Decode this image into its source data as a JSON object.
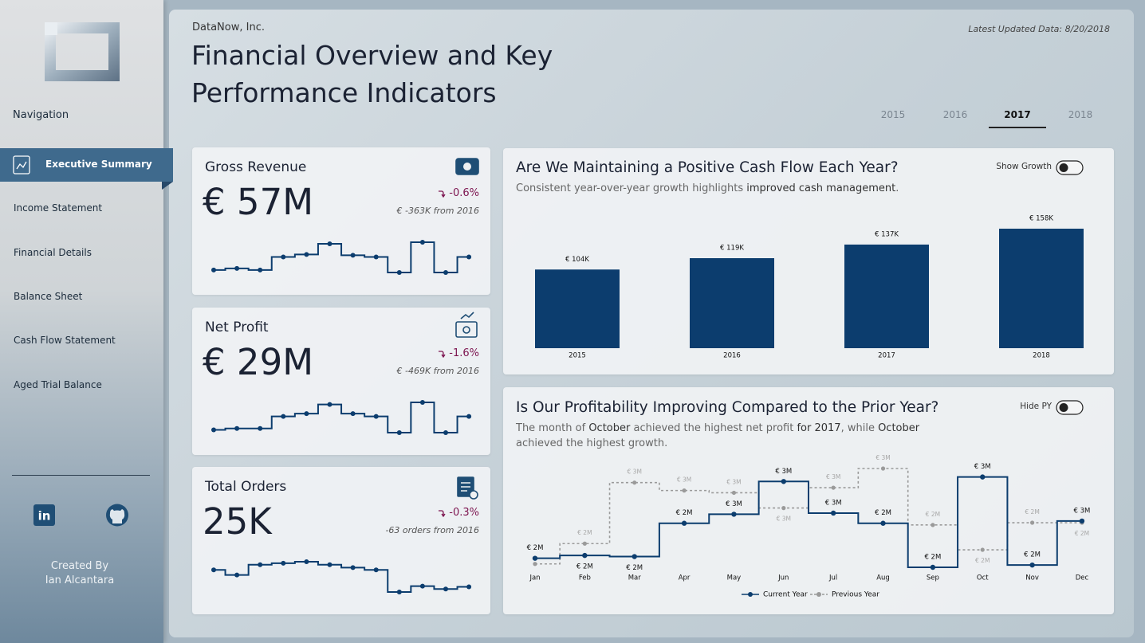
{
  "header": {
    "company": "DataNow, Inc.",
    "title": "Financial Overview and Key Performance Indicators",
    "updated": "Latest Updated Data: 8/20/2018",
    "years": [
      "2015",
      "2016",
      "2017",
      "2018"
    ],
    "selected_year": 2
  },
  "navigation": {
    "label": "Navigation",
    "items": [
      "Executive Summary",
      "Income Statement",
      "Financial Details",
      "Balance Sheet",
      "Cash Flow Statement",
      "Aged Trial Balance"
    ],
    "active": 0,
    "credit": [
      "Created By",
      "Ian Alcantara"
    ]
  },
  "kpis": [
    {
      "title": "Gross Revenue",
      "value": "€ 57M",
      "change": "-0.6%",
      "comparison": "€ -363K from 2016"
    },
    {
      "title": "Net Profit",
      "value": "€ 29M",
      "change": "-1.6%",
      "comparison": "€ -469K from 2016"
    },
    {
      "title": "Total Orders",
      "value": "25K",
      "change": "-0.3%",
      "comparison": "-63 orders from 2016"
    }
  ],
  "chart_data": [
    {
      "type": "bar",
      "title": "Are We Maintaining a Positive Cash Flow Each Year?",
      "subtitle": [
        {
          "text": "Consistent year-over-year growth highlights ",
          "bold": false
        },
        {
          "text": "improved cash management",
          "bold": true
        },
        {
          "text": ".",
          "bold": false
        }
      ],
      "toggle": "Show Growth",
      "categories": [
        "2015",
        "2016",
        "2017",
        "2018"
      ],
      "values": [
        104,
        119,
        137,
        158
      ],
      "value_labels": [
        "€ 104K",
        "€ 119K",
        "€ 137K",
        "€ 158K"
      ],
      "color": "#0c3d6e"
    },
    {
      "type": "line",
      "step": true,
      "title": "Is Our Profitability Improving Compared to the Prior Year?",
      "subtitle": [
        {
          "text": "The month of ",
          "bold": false
        },
        {
          "text": "October",
          "bold": true
        },
        {
          "text": " achieved the highest net profit ",
          "bold": false
        },
        {
          "text": "for 2017",
          "bold": true
        },
        {
          "text": ", while ",
          "bold": false
        },
        {
          "text": "October",
          "bold": true
        },
        {
          "text": " achieved the highest growth.",
          "bold": false
        }
      ],
      "toggle": "Hide PY",
      "categories": [
        "Jan",
        "Feb",
        "Mar",
        "Apr",
        "May",
        "Jun",
        "Jul",
        "Aug",
        "Sep",
        "Oct",
        "Nov",
        "Dec"
      ],
      "series": [
        {
          "name": "Current Year",
          "color": "#0c3d6e",
          "dash": false,
          "values": [
            1.86,
            1.91,
            1.89,
            2.48,
            2.64,
            3.22,
            2.66,
            2.48,
            1.7,
            3.3,
            1.74,
            2.52
          ],
          "value_labels": [
            "€ 2M",
            "€ 2M",
            "€ 2M",
            "€ 2M",
            "€ 3M",
            "€ 3M",
            "€ 3M",
            "€ 2M",
            "€ 2M",
            "€ 3M",
            "€ 2M",
            "€ 3M"
          ]
        },
        {
          "name": "Previous Year",
          "color": "#9a9a9a",
          "dash": true,
          "values": [
            1.76,
            2.12,
            3.2,
            3.06,
            3.02,
            2.75,
            3.11,
            3.45,
            2.45,
            2.01,
            2.49,
            2.49
          ],
          "value_labels": [
            null,
            "€ 2M",
            "€ 3M",
            "€ 3M",
            "€ 3M",
            "€ 3M",
            "€ 3M",
            "€ 3M",
            "€ 2M",
            "€ 2M",
            "€ 2M",
            "€ 2M"
          ]
        }
      ]
    },
    {
      "type": "line",
      "step": true,
      "color": "#0c3d6e",
      "values": [
        4.51,
        4.57,
        4.51,
        4.99,
        5.08,
        5.47,
        5.05,
        4.99,
        4.42,
        5.53,
        4.42,
        4.99
      ]
    },
    {
      "type": "line",
      "step": true,
      "color": "#0c3d6e",
      "values": [
        2.27,
        2.29,
        2.29,
        2.46,
        2.5,
        2.63,
        2.5,
        2.46,
        2.23,
        2.66,
        2.23,
        2.46
      ]
    },
    {
      "type": "line",
      "step": true,
      "color": "#0c3d6e",
      "values": [
        2.24,
        2.1,
        2.38,
        2.42,
        2.46,
        2.38,
        2.3,
        2.24,
        1.64,
        1.8,
        1.72,
        1.78
      ]
    }
  ]
}
